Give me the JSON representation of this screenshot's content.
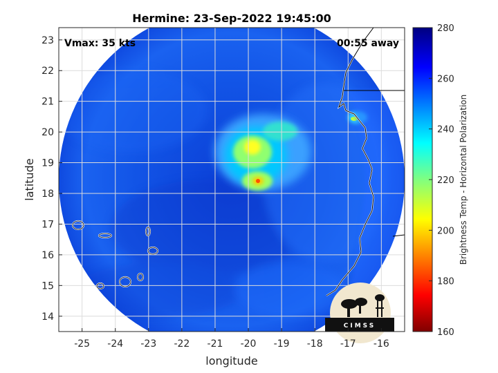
{
  "title": "Hermine: 23-Sep-2022 19:45:00",
  "vmax": "Vmax: 35 kts",
  "away": "00:55 away",
  "xlabel": "longitude",
  "ylabel": "latitude",
  "colorbar_label": "Brightness Temp - Horizontal Polarization",
  "x_ticks": [
    "-25",
    "-24",
    "-23",
    "-22",
    "-21",
    "-20",
    "-19",
    "-18",
    "-17",
    "-16"
  ],
  "y_ticks": [
    "14",
    "15",
    "16",
    "17",
    "18",
    "19",
    "20",
    "21",
    "22",
    "23"
  ],
  "colorbar_ticks": [
    "160",
    "180",
    "200",
    "220",
    "240",
    "260",
    "280"
  ],
  "map": {
    "xlim": [
      -25.7,
      -15.3
    ],
    "ylim": [
      13.5,
      23.4
    ],
    "swath_center": [
      -20.0,
      18.45
    ],
    "storm_cores": [
      {
        "lon": -19.8,
        "lat": 19.4,
        "tb": 205
      },
      {
        "lon": -19.6,
        "lat": 18.4,
        "tb": 190
      },
      {
        "lon": -19.0,
        "lat": 20.0,
        "tb": 225
      }
    ]
  },
  "colorbar": {
    "range": [
      160,
      280
    ],
    "colormap": "jet"
  },
  "logo": {
    "text": "CIMSS"
  }
}
